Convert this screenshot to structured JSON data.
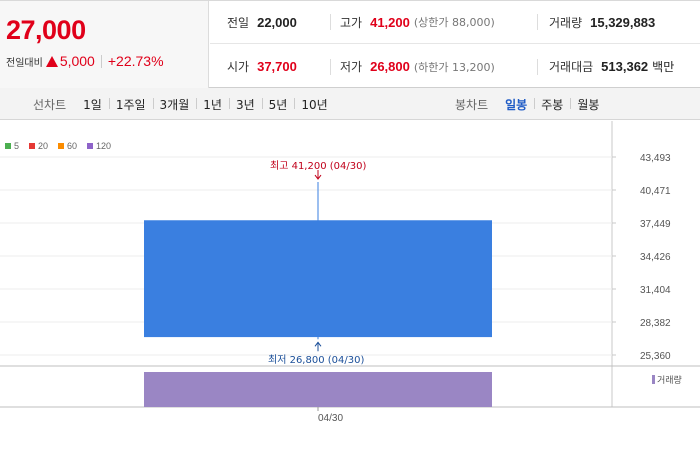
{
  "quote": {
    "current_price": "27,000",
    "change_label": "전일대비",
    "change_amount": "5,000",
    "change_percent": "+22.73%",
    "prev_close_label": "전일",
    "prev_close": "22,000",
    "high_label": "고가",
    "high": "41,200",
    "upper_limit": "(상한가 88,000)",
    "volume_label": "거래량",
    "volume": "15,329,883",
    "open_label": "시가",
    "open": "37,700",
    "low_label": "저가",
    "low": "26,800",
    "lower_limit": "(하한가 13,200)",
    "value_label": "거래대금",
    "value": "513,362",
    "value_unit": "백만"
  },
  "toolbar": {
    "line_title": "선차트",
    "line_periods": [
      "1일",
      "1주일",
      "3개월",
      "1년",
      "3년",
      "5년",
      "10년"
    ],
    "candle_title": "봉차트",
    "candle_periods": [
      "일봉",
      "주봉",
      "월봉"
    ],
    "candle_active": 0
  },
  "chart": {
    "ma_legend": [
      {
        "label": "5",
        "color": "#4caf50"
      },
      {
        "label": "20",
        "color": "#e53935"
      },
      {
        "label": "60",
        "color": "#fb8c00"
      },
      {
        "label": "120",
        "color": "#8e63c9"
      }
    ],
    "high_annotation": "최고 41,200 (04/30)",
    "low_annotation": "최저 26,800 (04/30)",
    "volume_legend": "거래량",
    "x_label": "04/30"
  },
  "chart_data": {
    "type": "candlestick",
    "x": [
      "04/30"
    ],
    "open": [
      37700
    ],
    "high": [
      41200
    ],
    "low": [
      26800
    ],
    "close": [
      27000
    ],
    "volume": [
      15329883
    ],
    "y_ticks": [
      "43,493",
      "40,471",
      "37,449",
      "34,426",
      "31,404",
      "28,382",
      "25,360"
    ],
    "ylim": [
      25360,
      43493
    ],
    "colors": {
      "candle": "#3a7fe0",
      "volume": "#9a86c4",
      "high_annotation": "#c0001a",
      "low_annotation": "#1b4f99"
    }
  }
}
